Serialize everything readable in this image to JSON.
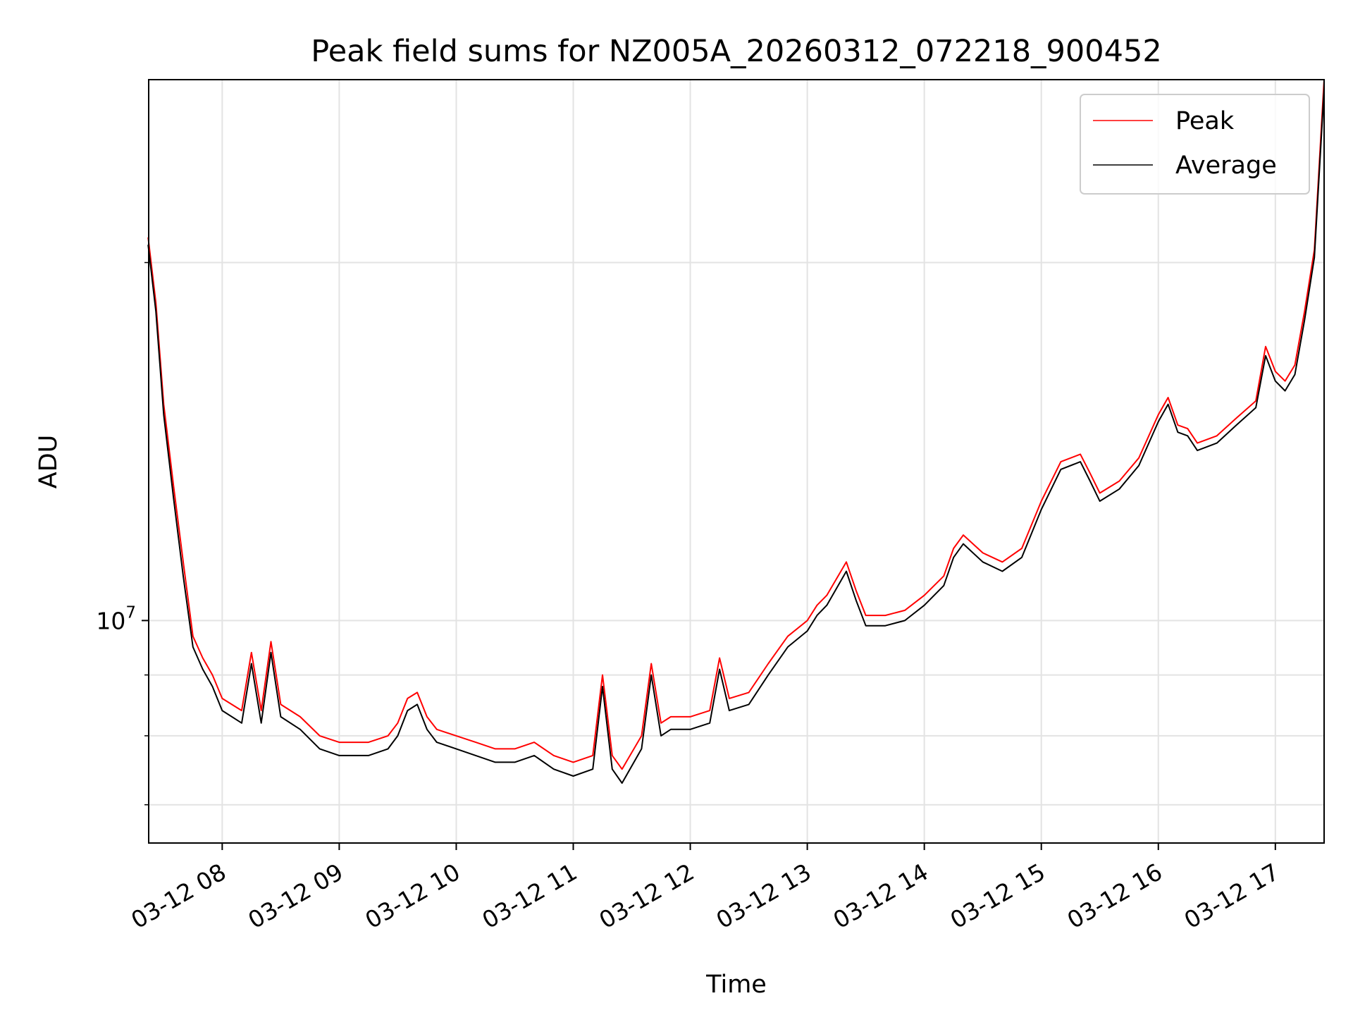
{
  "chart_data": {
    "type": "line",
    "title": "Peak field sums for NZ005A_20260312_072218_900452",
    "xlabel": "Time",
    "ylabel": "ADU",
    "x_type": "time",
    "x_tick_format": "MM-DD HH",
    "xlim": [
      "2026-03-12 07:22:18",
      "2026-03-12 17:25:00"
    ],
    "x_ticks": [
      "03-12 08",
      "03-12 09",
      "03-12 10",
      "03-12 11",
      "03-12 12",
      "03-12 13",
      "03-12 14",
      "03-12 15",
      "03-12 16",
      "03-12 17"
    ],
    "y_scale": "log",
    "ylim": [
      6500000,
      28500000
    ],
    "y_tick_label": {
      "base": "10",
      "exponent": "7"
    },
    "grid": true,
    "legend": "top-right",
    "x": [
      "07:22",
      "07:26",
      "07:30",
      "07:35",
      "07:40",
      "07:45",
      "07:50",
      "07:55",
      "08:00",
      "08:10",
      "08:15",
      "08:20",
      "08:25",
      "08:30",
      "08:40",
      "08:50",
      "09:00",
      "09:15",
      "09:25",
      "09:30",
      "09:35",
      "09:40",
      "09:45",
      "09:50",
      "10:00",
      "10:10",
      "10:20",
      "10:30",
      "10:40",
      "10:50",
      "11:00",
      "11:10",
      "11:15",
      "11:20",
      "11:25",
      "11:35",
      "11:40",
      "11:45",
      "11:50",
      "12:00",
      "12:10",
      "12:15",
      "12:20",
      "12:30",
      "12:40",
      "12:50",
      "13:00",
      "13:05",
      "13:10",
      "13:20",
      "13:25",
      "13:30",
      "13:40",
      "13:50",
      "14:00",
      "14:10",
      "14:15",
      "14:20",
      "14:30",
      "14:40",
      "14:50",
      "15:00",
      "15:10",
      "15:20",
      "15:25",
      "15:30",
      "15:40",
      "15:50",
      "16:00",
      "16:05",
      "16:10",
      "16:15",
      "16:20",
      "16:30",
      "16:40",
      "16:50",
      "16:55",
      "17:00",
      "17:05",
      "17:10",
      "17:15",
      "17:20",
      "17:25"
    ],
    "series": [
      {
        "name": "Peak",
        "color": "#ff0000",
        "values": [
          21000000,
          18500000,
          15200000,
          13000000,
          11200000,
          9700000,
          9300000,
          9000000,
          8600000,
          8400000,
          9400000,
          8400000,
          9600000,
          8500000,
          8300000,
          8000000,
          7900000,
          7900000,
          8000000,
          8200000,
          8600000,
          8700000,
          8300000,
          8100000,
          8000000,
          7900000,
          7800000,
          7800000,
          7900000,
          7700000,
          7600000,
          7700000,
          9000000,
          7700000,
          7500000,
          8000000,
          9200000,
          8200000,
          8300000,
          8300000,
          8400000,
          9300000,
          8600000,
          8700000,
          9200000,
          9700000,
          10000000,
          10300000,
          10500000,
          11200000,
          10600000,
          10100000,
          10100000,
          10200000,
          10500000,
          10900000,
          11500000,
          11800000,
          11400000,
          11200000,
          11500000,
          12600000,
          13600000,
          13800000,
          13300000,
          12800000,
          13100000,
          13700000,
          14900000,
          15400000,
          14600000,
          14500000,
          14100000,
          14300000,
          14800000,
          15300000,
          17000000,
          16200000,
          15900000,
          16400000,
          18200000,
          20500000,
          28500000
        ]
      },
      {
        "name": "Average",
        "color": "#000000",
        "values": [
          20700000,
          18200000,
          14900000,
          12700000,
          10900000,
          9500000,
          9100000,
          8800000,
          8400000,
          8200000,
          9200000,
          8200000,
          9400000,
          8300000,
          8100000,
          7800000,
          7700000,
          7700000,
          7800000,
          8000000,
          8400000,
          8500000,
          8100000,
          7900000,
          7800000,
          7700000,
          7600000,
          7600000,
          7700000,
          7500000,
          7400000,
          7500000,
          8800000,
          7500000,
          7300000,
          7800000,
          9000000,
          8000000,
          8100000,
          8100000,
          8200000,
          9100000,
          8400000,
          8500000,
          9000000,
          9500000,
          9800000,
          10100000,
          10300000,
          11000000,
          10400000,
          9900000,
          9900000,
          10000000,
          10300000,
          10700000,
          11300000,
          11600000,
          11200000,
          11000000,
          11300000,
          12400000,
          13400000,
          13600000,
          13100000,
          12600000,
          12900000,
          13500000,
          14700000,
          15200000,
          14400000,
          14300000,
          13900000,
          14100000,
          14600000,
          15100000,
          16700000,
          15900000,
          15600000,
          16100000,
          17900000,
          20200000,
          28000000
        ]
      }
    ]
  }
}
